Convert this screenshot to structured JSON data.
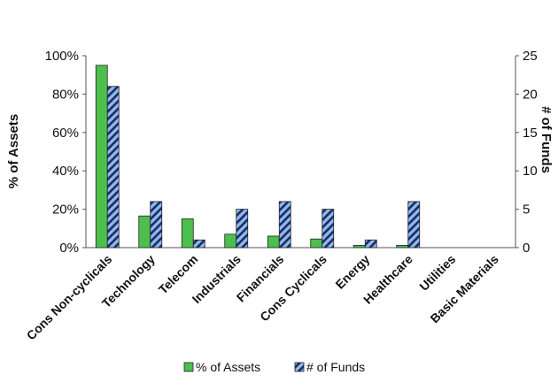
{
  "chart_data": {
    "type": "bar",
    "categories": [
      "Cons Non-cyclicals",
      "Technology",
      "Telecom",
      "Industrials",
      "Financials",
      "Cons Cyclicals",
      "Energy",
      "Healthcare",
      "Utilities",
      "Basic Materials"
    ],
    "series": [
      {
        "name": "% of Assets",
        "axis": "left",
        "color": "#4dbf4d",
        "values": [
          95,
          16.5,
          15,
          7,
          6,
          4.5,
          1.2,
          1.2,
          0,
          0
        ]
      },
      {
        "name": "# of Funds",
        "axis": "right",
        "color": "#8fb8e8",
        "pattern": "diagonal-hatch",
        "values": [
          21,
          6,
          1,
          5,
          6,
          5,
          1,
          6,
          0,
          0
        ]
      }
    ],
    "left_axis": {
      "label": "% of Assets",
      "ylim": [
        0,
        100
      ],
      "ticks": [
        "0%",
        "20%",
        "40%",
        "60%",
        "80%",
        "100%"
      ]
    },
    "right_axis": {
      "label": "# of Funds",
      "ylim": [
        0,
        25
      ],
      "ticks": [
        "0",
        "5",
        "10",
        "15",
        "20",
        "25"
      ]
    },
    "legend_position": "bottom",
    "grid": false
  }
}
